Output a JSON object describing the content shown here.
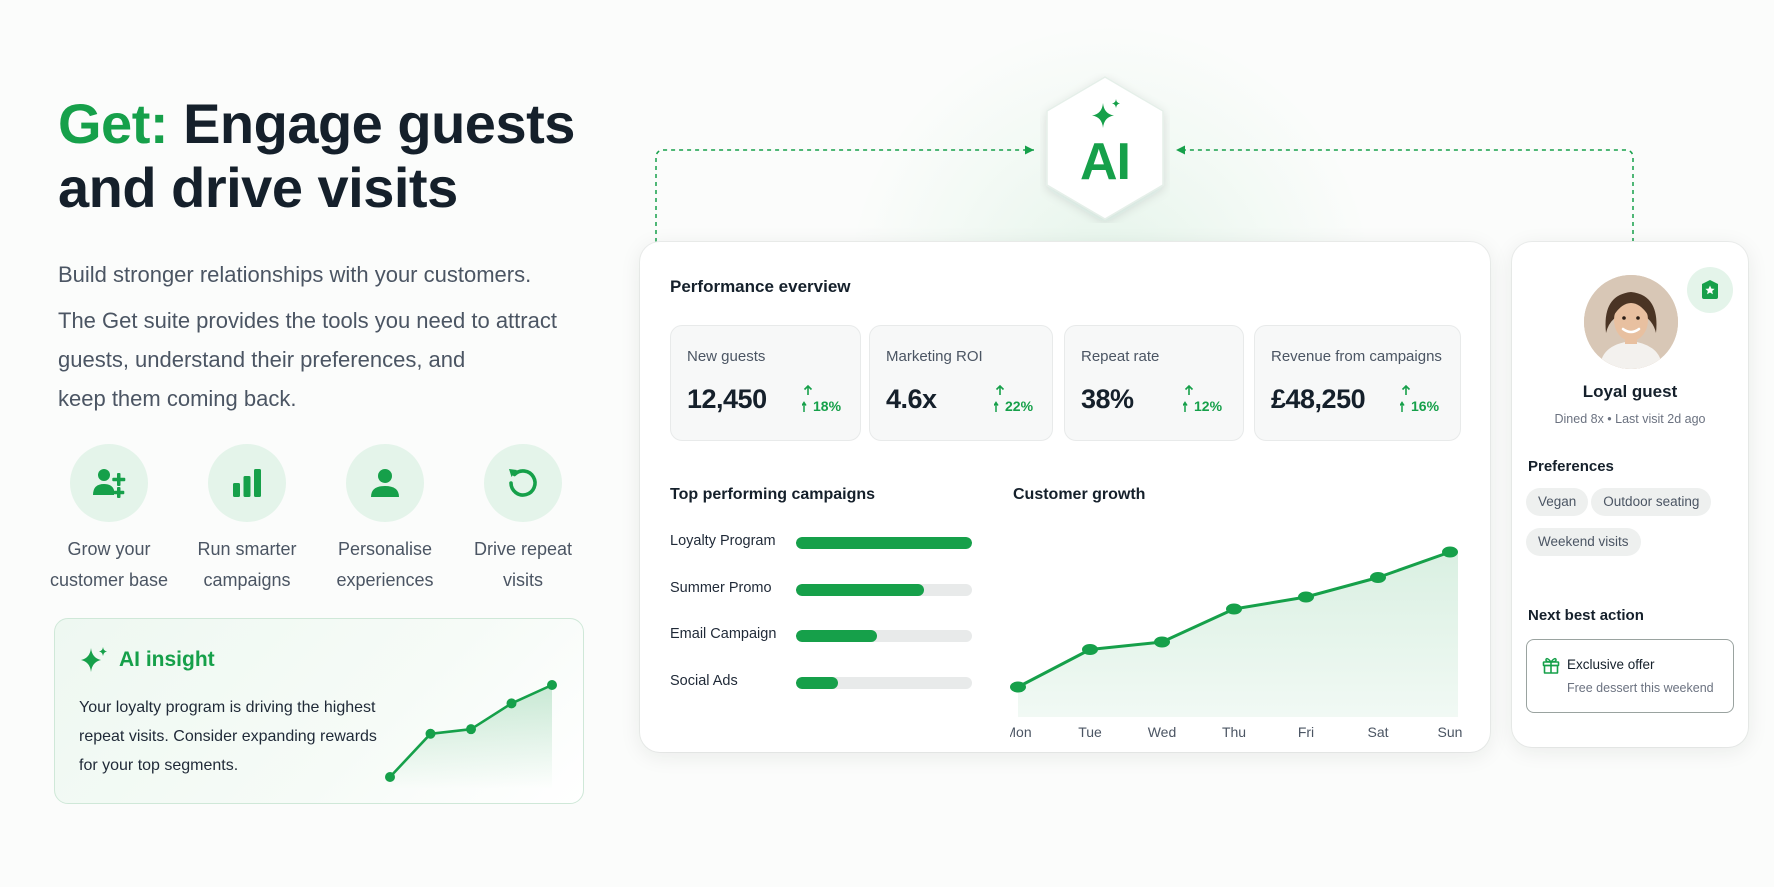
{
  "hero": {
    "title_accent": "Get:",
    "title_line1": "Engage guests",
    "title_line2": "and drive visits",
    "lead": "Build stronger relationships with your customers.",
    "body_lines": [
      "The Get suite provides the tools you need to attract",
      "guests, understand their preferences, and",
      "keep them coming back."
    ]
  },
  "features": [
    {
      "icon": "add-user-icon",
      "line1": "Grow your",
      "line2": "customer base"
    },
    {
      "icon": "bar-chart-icon",
      "line1": "Run smarter",
      "line2": "campaigns"
    },
    {
      "icon": "person-icon",
      "line1": "Personalise",
      "line2": "experiences"
    },
    {
      "icon": "refresh-icon",
      "line1": "Drive repeat",
      "line2": "visits"
    }
  ],
  "insight": {
    "icon": "sparkle-icon",
    "title": "AI insight",
    "text_lines": [
      "Your loyalty program is driving the highest",
      "repeat visits. Consider expanding rewards",
      "for your top segments."
    ],
    "sparkline": [
      0,
      0.47,
      0.52,
      0.8,
      1.0
    ]
  },
  "ai_hub": {
    "label": "AI",
    "icon": "sparkle-icon"
  },
  "performance": {
    "title": "Performance everview",
    "kpis": [
      {
        "label": "New guests",
        "value": "12,450",
        "delta": "18%"
      },
      {
        "label": "Marketing ROI",
        "value": "4.6x",
        "delta": "22%"
      },
      {
        "label": "Repeat rate",
        "value": "38%",
        "delta": "12%"
      },
      {
        "label": "Revenue from campaigns",
        "value": "£48,250",
        "delta": "16%"
      }
    ],
    "campaigns_title": "Top performing campaigns",
    "campaigns": [
      {
        "name": "Loyalty Program",
        "fill": 1.0
      },
      {
        "name": "Summer Promo",
        "fill": 0.73
      },
      {
        "name": "Email Campaign",
        "fill": 0.46
      },
      {
        "name": "Social Ads",
        "fill": 0.24
      }
    ],
    "growth_title": "Customer growth"
  },
  "chart_data": {
    "type": "area",
    "title": "Customer growth",
    "categories": [
      "Mon",
      "Tue",
      "Wed",
      "Thu",
      "Fri",
      "Sat",
      "Sun"
    ],
    "values": [
      20,
      45,
      50,
      72,
      80,
      93,
      110
    ],
    "ylim": [
      0,
      130
    ],
    "grid": false,
    "color": "#16a04a"
  },
  "guest": {
    "name": "Loyal guest",
    "meta": "Dined 8x • Last visit 2d ago",
    "badge_icon": "star-badge-icon",
    "preferences_title": "Preferences",
    "preferences": [
      "Vegan",
      "Outdoor seating",
      "Weekend visits"
    ],
    "next_action_title": "Next best action",
    "action_icon": "gift-icon",
    "action_title": "Exclusive offer",
    "action_sub": "Free dessert this weekend"
  },
  "colors": {
    "accent": "#16a04a",
    "accent_light": "#e4f4ea",
    "text": "#15202b",
    "muted": "#4b5563"
  }
}
